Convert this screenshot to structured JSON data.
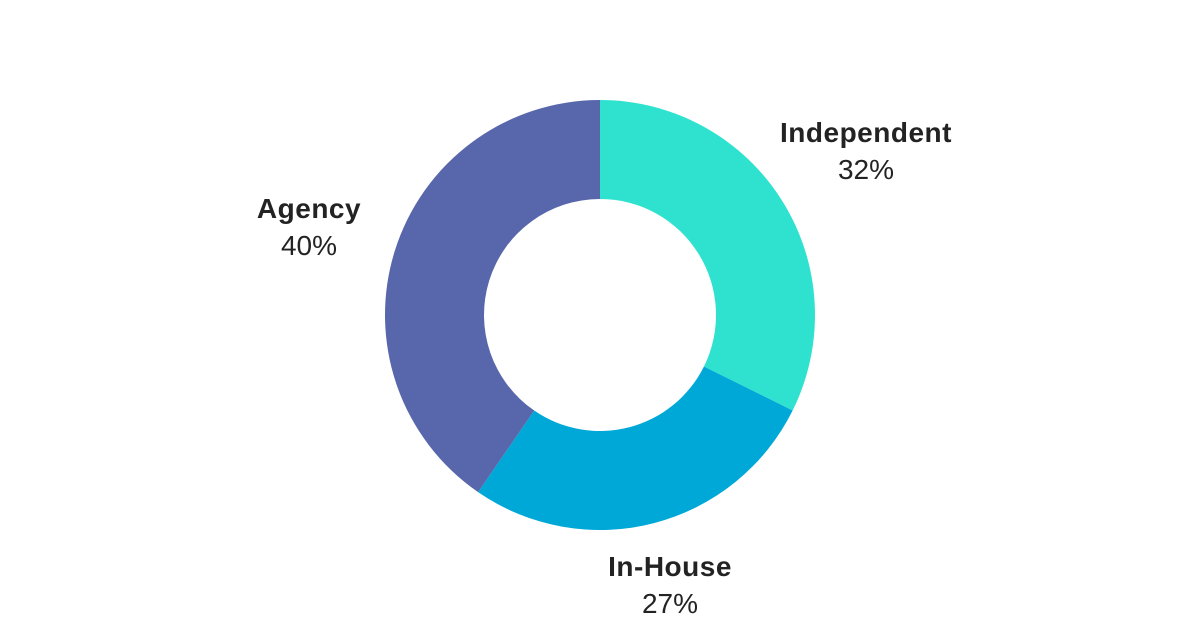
{
  "chart_data": {
    "type": "pie",
    "subtype": "donut",
    "title": "",
    "legend": "none",
    "start_angle_deg": 0,
    "direction": "clockwise",
    "inner_radius_ratio": 0.54,
    "background_color": "#FFFFFF",
    "label_text_color": "#232323",
    "slices": [
      {
        "label": "Independent",
        "value": 32,
        "value_label": "32%",
        "color": "#2FE2D0"
      },
      {
        "label": "In-House",
        "value": 27,
        "value_label": "27%",
        "color": "#00A8D8"
      },
      {
        "label": "Agency",
        "value": 40,
        "value_label": "40%",
        "color": "#5866AB"
      }
    ]
  }
}
